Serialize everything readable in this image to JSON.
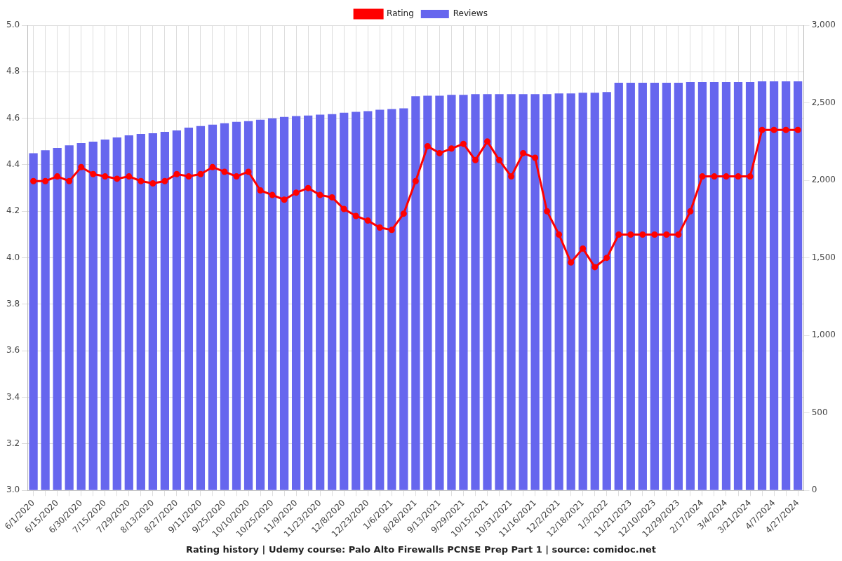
{
  "chart_data": {
    "type": "bar",
    "title": "Rating history | Udemy course: Palo Alto Firewalls PCNSE Prep Part 1 | source: comidoc.net",
    "categories": [
      "6/1/2020",
      null,
      "6/15/2020",
      null,
      "6/30/2020",
      null,
      "7/15/2020",
      null,
      "7/29/2020",
      null,
      "8/13/2020",
      null,
      "8/27/2020",
      null,
      "9/11/2020",
      null,
      "9/25/2020",
      null,
      "10/10/2020",
      null,
      "10/25/2020",
      null,
      "11/9/2020",
      null,
      "11/23/2020",
      null,
      "12/8/2020",
      null,
      "12/23/2020",
      null,
      "1/6/2021",
      null,
      "8/28/2021",
      null,
      "9/13/2021",
      null,
      "9/29/2021",
      null,
      "10/15/2021",
      null,
      "10/31/2021",
      null,
      "11/16/2021",
      null,
      "12/2/2021",
      null,
      "12/18/2021",
      null,
      "1/3/2022",
      null,
      "11/21/2023",
      null,
      "12/10/2023",
      null,
      "12/29/2023",
      null,
      "2/17/2024",
      null,
      "3/4/2024",
      null,
      "3/21/2024",
      null,
      "4/7/2024",
      null,
      "4/27/2024"
    ],
    "series": [
      {
        "name": "Rating",
        "color": "#ff0000",
        "type": "line",
        "marker": "circle",
        "values": [
          4.33,
          4.33,
          4.35,
          4.33,
          4.39,
          4.36,
          4.35,
          4.34,
          4.35,
          4.33,
          4.32,
          4.33,
          4.36,
          4.35,
          4.36,
          4.39,
          4.37,
          4.35,
          4.37,
          4.29,
          4.27,
          4.25,
          4.28,
          4.3,
          4.27,
          4.26,
          4.21,
          4.18,
          4.16,
          4.13,
          4.12,
          4.19,
          4.33,
          4.48,
          4.45,
          4.47,
          4.49,
          4.42,
          4.5,
          4.42,
          4.35,
          4.45,
          4.43,
          4.2,
          4.1,
          3.98,
          4.04,
          3.96,
          4.0,
          4.1,
          4.1,
          4.1,
          4.1,
          4.1,
          4.1,
          4.2,
          4.35,
          4.35,
          4.35,
          4.35,
          4.35,
          4.55,
          4.55,
          4.55,
          4.55
        ]
      },
      {
        "name": "Reviews",
        "color": "#6666ee",
        "type": "bar",
        "axis": "y2",
        "values": [
          2175,
          2194,
          2208,
          2226,
          2240,
          2249,
          2263,
          2276,
          2290,
          2299,
          2304,
          2313,
          2322,
          2340,
          2350,
          2359,
          2368,
          2377,
          2382,
          2391,
          2400,
          2409,
          2414,
          2418,
          2423,
          2427,
          2436,
          2441,
          2446,
          2455,
          2460,
          2464,
          2542,
          2546,
          2546,
          2551,
          2551,
          2556,
          2556,
          2556,
          2556,
          2556,
          2556,
          2556,
          2560,
          2560,
          2565,
          2565,
          2569,
          2629,
          2629,
          2629,
          2629,
          2629,
          2629,
          2634,
          2634,
          2634,
          2634,
          2634,
          2634,
          2638,
          2638,
          2638,
          2638
        ]
      }
    ],
    "ylim": [
      3,
      5
    ],
    "yticks": [
      {
        "value": 3,
        "label": "3.0"
      },
      {
        "value": 3.2,
        "label": "3.2"
      },
      {
        "value": 3.4,
        "label": "3.4"
      },
      {
        "value": 3.6,
        "label": "3.6"
      },
      {
        "value": 3.8,
        "label": "3.8"
      },
      {
        "value": 4,
        "label": "4.0"
      },
      {
        "value": 4.2,
        "label": "4.2"
      },
      {
        "value": 4.4,
        "label": "4.4"
      },
      {
        "value": 4.6,
        "label": "4.6"
      },
      {
        "value": 4.8,
        "label": "4.8"
      },
      {
        "value": 5,
        "label": "5.0"
      }
    ],
    "y2lim": [
      0,
      3000
    ],
    "y2ticks": [
      0,
      500,
      {
        "value": 1000,
        "label": "1,000"
      },
      {
        "value": 1500,
        "label": "1,500"
      },
      {
        "value": 2000,
        "label": "2,000"
      },
      {
        "value": 2500,
        "label": "2,500"
      },
      {
        "value": 3000,
        "label": "3,000"
      }
    ],
    "grid": true,
    "legend": "top"
  }
}
